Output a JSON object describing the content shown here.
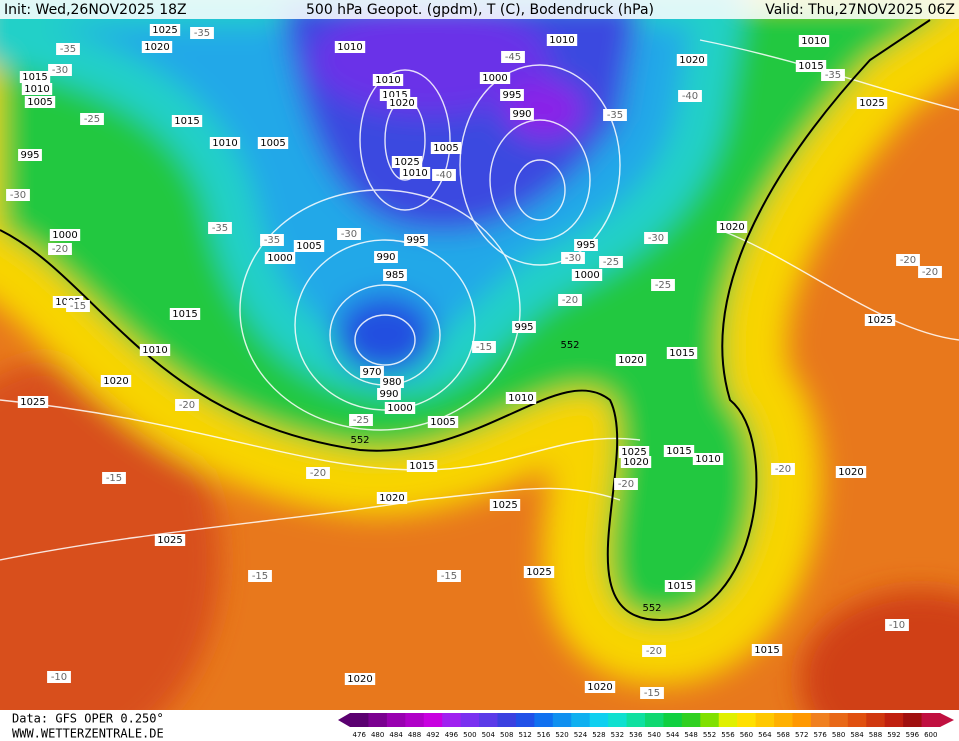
{
  "header": {
    "init": "Init: Wed,26NOV2025 18Z",
    "title": "500 hPa Geopot. (gpdm), T (C), Bodendruck (hPa)",
    "valid": "Valid: Thu,27NOV2025 06Z"
  },
  "footer": {
    "data": "Data: GFS OPER 0.250°",
    "site": "WWW.WETTERZENTRALE.DE"
  },
  "colorbar": {
    "ticks": [
      476,
      480,
      484,
      488,
      492,
      496,
      500,
      504,
      508,
      512,
      516,
      520,
      524,
      528,
      532,
      536,
      540,
      544,
      548,
      552,
      556,
      560,
      564,
      568,
      572,
      576,
      580,
      584,
      588,
      592,
      596,
      600
    ],
    "colors": [
      "#5a0070",
      "#7a0090",
      "#9900b0",
      "#b000c8",
      "#c800e0",
      "#a020f0",
      "#7a30f0",
      "#5a3ae8",
      "#3a40e0",
      "#2050e8",
      "#1070f0",
      "#1090f0",
      "#10b0f0",
      "#10d0f0",
      "#10e0d0",
      "#10e0a0",
      "#10d870",
      "#10d040",
      "#30d020",
      "#80e000",
      "#e0f000",
      "#ffe000",
      "#ffc800",
      "#ffb000",
      "#ff9800",
      "#f08020",
      "#e86818",
      "#e05010",
      "#d03810",
      "#c02010",
      "#a01010",
      "#c01040"
    ]
  },
  "pressure_labels": [
    1025,
    1020,
    1015,
    1010,
    1005,
    995,
    1000,
    1005,
    1010,
    1015,
    1020,
    1025,
    1015,
    1010,
    1005,
    1010,
    1010,
    1015,
    1020,
    1025,
    1010,
    1005,
    1000,
    995,
    990,
    1010,
    1020,
    1010,
    1015,
    1025,
    1020,
    1025,
    1015,
    1020,
    995,
    990,
    985,
    1005,
    1000,
    970,
    980,
    990,
    1000,
    1005,
    995,
    1000,
    995,
    1010,
    1015,
    1020,
    1025,
    1025,
    1025,
    1025,
    1020,
    1015,
    1010,
    1020,
    1015,
    1015,
    1020,
    1020
  ],
  "temperature_labels": [
    -35,
    -30,
    -25,
    -30,
    -20,
    -15,
    -35,
    -35,
    -30,
    -40,
    -45,
    -40,
    -35,
    -35,
    -30,
    -25,
    -20,
    -30,
    -25,
    -15,
    -20,
    -25,
    -20,
    -15,
    -15,
    -15,
    -20,
    -20,
    -20,
    -20,
    -10,
    -20,
    -15,
    -10,
    -35
  ],
  "height_labels": [
    552,
    552,
    552
  ]
}
